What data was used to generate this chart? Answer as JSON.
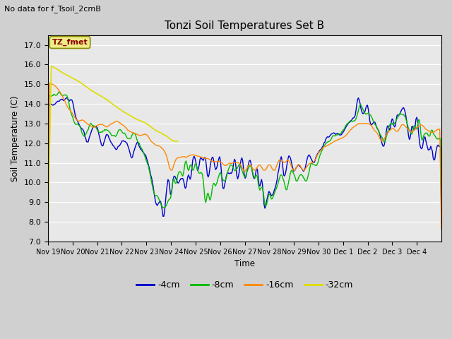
{
  "title": "Tonzi Soil Temperatures Set B",
  "suptitle": "No data for f_Tsoil_2cmB",
  "ylabel": "Soil Temperature (C)",
  "xlabel": "Time",
  "annotation": "TZ_fmet",
  "ylim": [
    7.0,
    17.5
  ],
  "yticks": [
    7.0,
    8.0,
    9.0,
    10.0,
    11.0,
    12.0,
    13.0,
    14.0,
    15.0,
    16.0,
    17.0
  ],
  "colors": {
    "4cm": "#0000cc",
    "8cm": "#00bb00",
    "16cm": "#ff8800",
    "32cm": "#dddd00"
  },
  "legend_labels": [
    "-4cm",
    "-8cm",
    "-16cm",
    "-32cm"
  ],
  "bg_color": "#e8e8e8",
  "fig_bg": "#d0d0d0",
  "xtick_labels": [
    "Nov 19",
    "Nov 20",
    "Nov 21",
    "Nov 22",
    "Nov 23",
    "Nov 24",
    "Nov 25",
    "Nov 26",
    "Nov 27",
    "Nov 28",
    "Nov 29",
    "Nov 30",
    "Dec 1",
    "Dec 2",
    "Dec 3",
    "Dec 4"
  ]
}
